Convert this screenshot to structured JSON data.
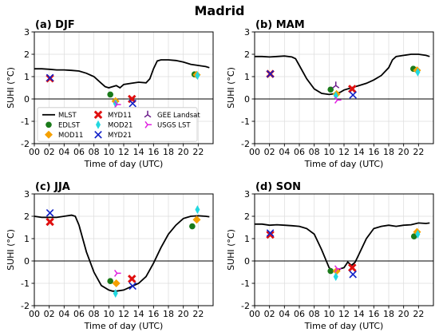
{
  "figure_title": "Madrid",
  "chart_data": [
    {
      "type": "line",
      "title": "(a) DJF",
      "xlabel": "Time of day (UTC)",
      "ylabel": "SUHI (°C)",
      "xlim": [
        0,
        24
      ],
      "ylim": [
        -2,
        3
      ],
      "xticks": [
        "00",
        "02",
        "04",
        "06",
        "08",
        "10",
        "12",
        "14",
        "16",
        "18",
        "20",
        "22"
      ],
      "yticks": [
        "-2",
        "-1",
        "0",
        "1",
        "2",
        "3"
      ],
      "legend_position": "lower-left",
      "grid": true,
      "series": [
        {
          "name": "MLST",
          "kind": "line",
          "color": "#000000",
          "x": [
            0,
            1,
            2,
            3,
            4,
            5,
            6,
            7,
            8,
            9,
            9.5,
            10,
            10.5,
            11,
            11.5,
            12,
            13,
            14,
            15,
            15.5,
            16,
            16.5,
            17,
            18,
            19,
            20,
            21,
            22,
            23,
            23.5
          ],
          "y": [
            1.35,
            1.35,
            1.33,
            1.3,
            1.3,
            1.28,
            1.25,
            1.15,
            1.0,
            0.7,
            0.55,
            0.5,
            0.55,
            0.6,
            0.5,
            0.65,
            0.7,
            0.75,
            0.72,
            0.9,
            1.35,
            1.7,
            1.75,
            1.75,
            1.72,
            1.65,
            1.55,
            1.5,
            1.45,
            1.4
          ]
        },
        {
          "name": "EDLST",
          "kind": "circle",
          "color": "#1a7a1a",
          "x": [
            10.2,
            21.5
          ],
          "y": [
            0.2,
            1.1
          ]
        },
        {
          "name": "MOD11",
          "kind": "diamond",
          "color": "#f5a000",
          "x": [
            10.9,
            21.8
          ],
          "y": [
            -0.1,
            1.08
          ]
        },
        {
          "name": "MYD11",
          "kind": "xmark",
          "color": "#e01010",
          "x": [
            2.1,
            13.1
          ],
          "y": [
            0.92,
            0.0
          ]
        },
        {
          "name": "MOD21",
          "kind": "thin_diamond",
          "color": "#22d8e0",
          "x": [
            10.9,
            21.9
          ],
          "y": [
            -0.2,
            1.05
          ]
        },
        {
          "name": "MYD21",
          "kind": "x",
          "color": "#1020c8",
          "x": [
            2.1,
            13.2
          ],
          "y": [
            0.95,
            -0.2
          ]
        },
        {
          "name": "GEE Landsat",
          "kind": "tri_up",
          "color": "#6a1a8a",
          "x": [],
          "y": []
        },
        {
          "name": "USGS LST",
          "kind": "tri_right",
          "color": "#e020e0",
          "x": [
            11.1
          ],
          "y": [
            -0.25
          ]
        }
      ]
    },
    {
      "type": "line",
      "title": "(b) MAM",
      "xlabel": "Time of day (UTC)",
      "ylabel": "SUHI (°C)",
      "xlim": [
        0,
        24
      ],
      "ylim": [
        -2,
        3
      ],
      "xticks": [
        "00",
        "02",
        "04",
        "06",
        "08",
        "10",
        "12",
        "14",
        "16",
        "18",
        "20",
        "22"
      ],
      "yticks": [
        "-2",
        "-1",
        "0",
        "1",
        "2",
        "3"
      ],
      "grid": true,
      "series": [
        {
          "name": "MLST",
          "kind": "line",
          "color": "#000000",
          "x": [
            0,
            1,
            2,
            3,
            4,
            5,
            5.5,
            6,
            7,
            8,
            9,
            10,
            11,
            11.5,
            12,
            13,
            14,
            15,
            16,
            17,
            18,
            18.5,
            19,
            20,
            21,
            22,
            23,
            23.5
          ],
          "y": [
            1.9,
            1.9,
            1.88,
            1.9,
            1.92,
            1.88,
            1.8,
            1.5,
            0.9,
            0.45,
            0.25,
            0.2,
            0.25,
            0.3,
            0.4,
            0.5,
            0.6,
            0.7,
            0.85,
            1.05,
            1.4,
            1.75,
            1.9,
            1.95,
            2.0,
            2.0,
            1.95,
            1.9
          ]
        },
        {
          "name": "EDLST",
          "kind": "circle",
          "color": "#1a7a1a",
          "x": [
            10.2,
            21.3
          ],
          "y": [
            0.42,
            1.35
          ]
        },
        {
          "name": "MOD11",
          "kind": "diamond",
          "color": "#f5a000",
          "x": [
            11.0,
            21.8
          ],
          "y": [
            0.22,
            1.28
          ]
        },
        {
          "name": "MYD11",
          "kind": "xmark",
          "color": "#e01010",
          "x": [
            2.1,
            13.1
          ],
          "y": [
            1.12,
            0.45
          ]
        },
        {
          "name": "MOD21",
          "kind": "thin_diamond",
          "color": "#22d8e0",
          "x": [
            10.9,
            21.9
          ],
          "y": [
            0.15,
            1.2
          ]
        },
        {
          "name": "MYD21",
          "kind": "x",
          "color": "#1020c8",
          "x": [
            2.1,
            13.2
          ],
          "y": [
            1.12,
            0.18
          ]
        },
        {
          "name": "GEE Landsat",
          "kind": "tri_up",
          "color": "#6a1a8a",
          "x": [
            10.9
          ],
          "y": [
            0.6
          ]
        },
        {
          "name": "USGS LST",
          "kind": "tri_right",
          "color": "#e020e0",
          "x": [
            11.1
          ],
          "y": [
            -0.05
          ]
        }
      ]
    },
    {
      "type": "line",
      "title": "(c) JJA",
      "xlabel": "Time of day (UTC)",
      "ylabel": "SUHI (°C)",
      "xlim": [
        0,
        24
      ],
      "ylim": [
        -2,
        3
      ],
      "xticks": [
        "00",
        "02",
        "04",
        "06",
        "08",
        "10",
        "12",
        "14",
        "16",
        "18",
        "20",
        "22"
      ],
      "yticks": [
        "-2",
        "-1",
        "0",
        "1",
        "2",
        "3"
      ],
      "grid": true,
      "series": [
        {
          "name": "MLST",
          "kind": "line",
          "color": "#000000",
          "x": [
            0,
            1,
            2,
            3,
            4,
            5,
            5.5,
            6,
            7,
            8,
            9,
            10,
            10.5,
            11,
            12,
            13,
            14,
            15,
            16,
            17,
            18,
            19,
            20,
            21,
            22,
            23,
            23.5
          ],
          "y": [
            2.0,
            1.95,
            1.95,
            1.95,
            2.0,
            2.05,
            2.0,
            1.6,
            0.4,
            -0.5,
            -1.1,
            -1.3,
            -1.35,
            -1.35,
            -1.3,
            -1.15,
            -1.0,
            -0.7,
            -0.1,
            0.6,
            1.2,
            1.6,
            1.9,
            2.0,
            2.02,
            2.0,
            1.98
          ]
        },
        {
          "name": "EDLST",
          "kind": "circle",
          "color": "#1a7a1a",
          "x": [
            10.2,
            21.2
          ],
          "y": [
            -0.9,
            1.55
          ]
        },
        {
          "name": "MOD11",
          "kind": "diamond",
          "color": "#f5a000",
          "x": [
            11.0,
            21.8
          ],
          "y": [
            -1.0,
            1.85
          ]
        },
        {
          "name": "MYD11",
          "kind": "xmark",
          "color": "#e01010",
          "x": [
            2.1,
            13.1
          ],
          "y": [
            1.75,
            -0.8
          ]
        },
        {
          "name": "MOD21",
          "kind": "thin_diamond",
          "color": "#22d8e0",
          "x": [
            10.9,
            21.9
          ],
          "y": [
            -1.45,
            2.3
          ]
        },
        {
          "name": "MYD21",
          "kind": "x",
          "color": "#1020c8",
          "x": [
            2.1,
            13.2
          ],
          "y": [
            2.15,
            -1.12
          ]
        },
        {
          "name": "GEE Landsat",
          "kind": "tri_up",
          "color": "#6a1a8a",
          "x": [],
          "y": []
        },
        {
          "name": "USGS LST",
          "kind": "tri_right",
          "color": "#e020e0",
          "x": [
            11.1
          ],
          "y": [
            -0.55
          ]
        }
      ]
    },
    {
      "type": "line",
      "title": "(d) SON",
      "xlabel": "Time of day (UTC)",
      "ylabel": "SUHI (°C)",
      "xlim": [
        0,
        24
      ],
      "ylim": [
        -2,
        3
      ],
      "xticks": [
        "00",
        "02",
        "04",
        "06",
        "08",
        "10",
        "12",
        "14",
        "16",
        "18",
        "20",
        "22"
      ],
      "yticks": [
        "-2",
        "-1",
        "0",
        "1",
        "2",
        "3"
      ],
      "grid": true,
      "series": [
        {
          "name": "MLST",
          "kind": "line",
          "color": "#000000",
          "x": [
            0,
            1,
            2,
            3,
            4,
            5,
            6,
            7,
            8,
            9,
            10,
            10.5,
            11,
            11.5,
            12,
            12.5,
            13,
            13.5,
            14,
            15,
            16,
            17,
            18,
            19,
            20,
            21,
            22,
            23,
            23.5
          ],
          "y": [
            1.65,
            1.65,
            1.6,
            1.62,
            1.6,
            1.58,
            1.55,
            1.45,
            1.2,
            0.5,
            -0.3,
            -0.45,
            -0.5,
            -0.35,
            -0.3,
            -0.05,
            -0.2,
            -0.05,
            0.3,
            1.0,
            1.45,
            1.55,
            1.6,
            1.55,
            1.6,
            1.62,
            1.7,
            1.68,
            1.7
          ]
        },
        {
          "name": "EDLST",
          "kind": "circle",
          "color": "#1a7a1a",
          "x": [
            10.2,
            21.4
          ],
          "y": [
            -0.45,
            1.1
          ]
        },
        {
          "name": "MOD11",
          "kind": "diamond",
          "color": "#f5a000",
          "x": [
            11.0,
            21.8
          ],
          "y": [
            -0.45,
            1.3
          ]
        },
        {
          "name": "MYD11",
          "kind": "xmark",
          "color": "#e01010",
          "x": [
            2.1,
            13.1
          ],
          "y": [
            1.18,
            -0.3
          ]
        },
        {
          "name": "MOD21",
          "kind": "thin_diamond",
          "color": "#22d8e0",
          "x": [
            10.9,
            21.9
          ],
          "y": [
            -0.7,
            1.2
          ]
        },
        {
          "name": "MYD21",
          "kind": "x",
          "color": "#1020c8",
          "x": [
            2.1,
            13.2
          ],
          "y": [
            1.25,
            -0.6
          ]
        },
        {
          "name": "GEE Landsat",
          "kind": "tri_up",
          "color": "#6a1a8a",
          "x": [],
          "y": []
        },
        {
          "name": "USGS LST",
          "kind": "tri_right",
          "color": "#e020e0",
          "x": [
            11.1
          ],
          "y": [
            -0.35
          ]
        }
      ]
    }
  ]
}
